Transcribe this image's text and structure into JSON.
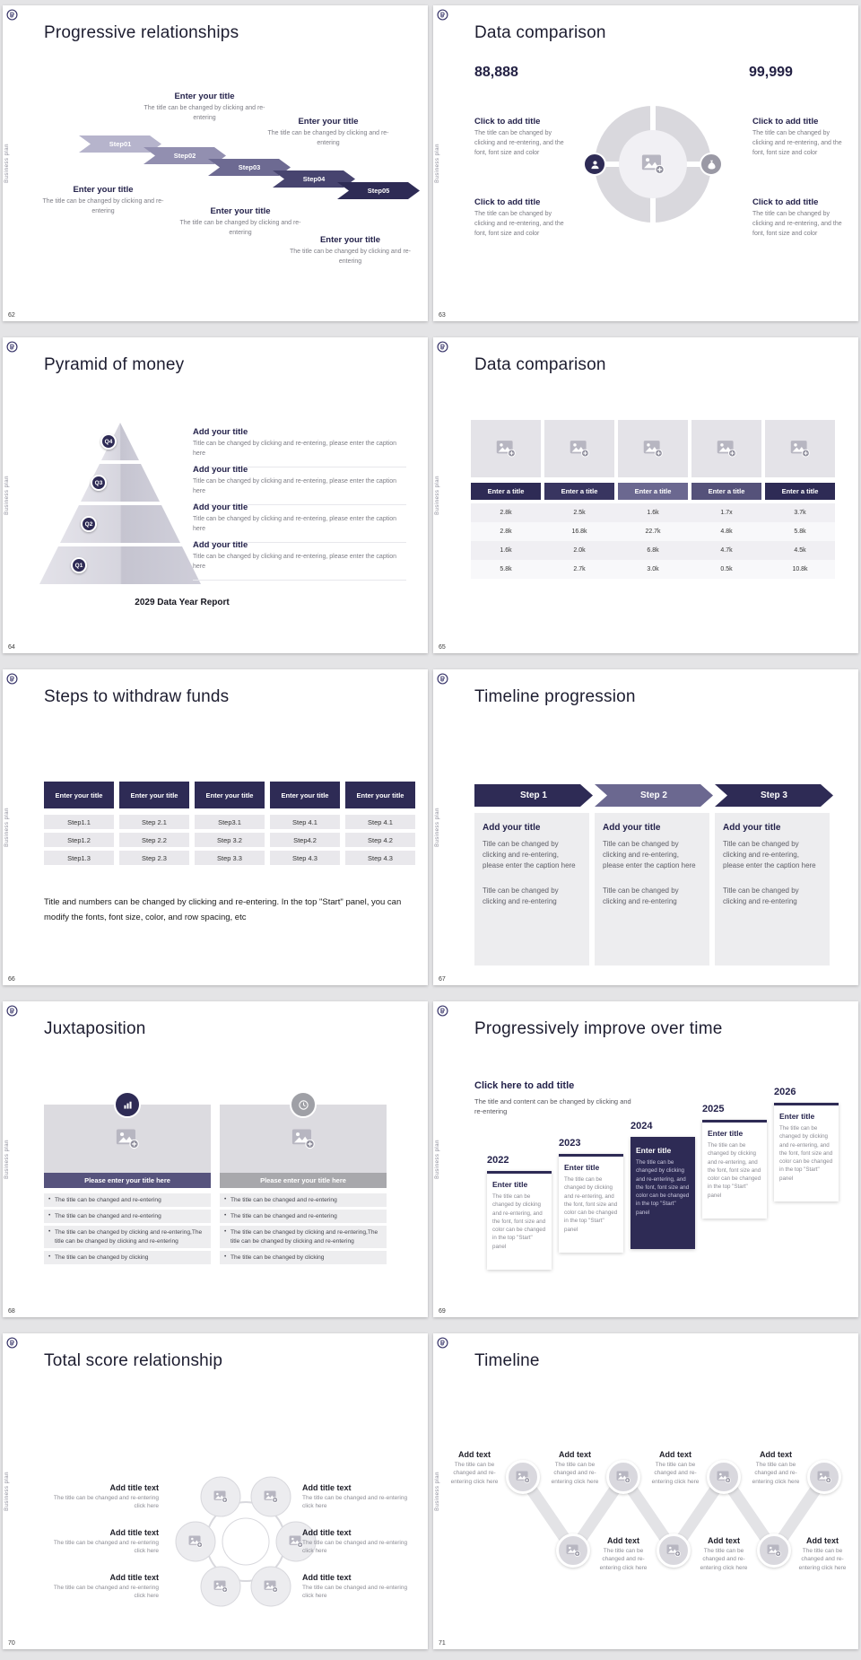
{
  "icons": {
    "logo": "brand-logo",
    "image": "image-placeholder",
    "person": "person",
    "money": "money-bag",
    "chart": "bar-chart",
    "clock": "clock"
  },
  "common": {
    "sidebar_text": "Business plan"
  },
  "slides": {
    "s62": {
      "number": "62",
      "title": "Progressive relationships",
      "steps": [
        "Step01",
        "Step02",
        "Step03",
        "Step04",
        "Step05"
      ],
      "blocks": [
        {
          "t": "Enter your title",
          "b": "The title can be changed by clicking and re-entering"
        },
        {
          "t": "Enter your title",
          "b": "The title can be changed by clicking and re-entering"
        },
        {
          "t": "Enter your title",
          "b": "The title can be changed by clicking and re-entering"
        },
        {
          "t": "Enter your title",
          "b": "The title can be changed by clicking and re-entering"
        },
        {
          "t": "Enter your title",
          "b": "The title can be changed by clicking and re-entering"
        }
      ]
    },
    "s63": {
      "number": "63",
      "title": "Data comparison",
      "left_value": "88,888",
      "right_value": "99,999",
      "blocks": [
        {
          "t": "Click to add title",
          "b": "The title can be changed by clicking and re-entering, and the font, font size and color"
        },
        {
          "t": "Click to add title",
          "b": "The title can be changed by clicking and re-entering, and the font, font size and color"
        },
        {
          "t": "Click to add title",
          "b": "The title can be changed by clicking and re-entering, and the font, font size and color"
        },
        {
          "t": "Click to add title",
          "b": "The title can be changed by clicking and re-entering, and the font, font size and color"
        }
      ]
    },
    "s64": {
      "number": "64",
      "title": "Pyramid of money",
      "levels": [
        "Q4",
        "Q3",
        "Q2",
        "Q1"
      ],
      "blocks": [
        {
          "t": "Add your title",
          "b": "Title can be changed by clicking and re-entering, please enter the caption here"
        },
        {
          "t": "Add your title",
          "b": "Title can be changed by clicking and re-entering, please enter the caption here"
        },
        {
          "t": "Add your title",
          "b": "Title can be changed by clicking and re-entering, please enter the caption here"
        },
        {
          "t": "Add your title",
          "b": "Title can be changed by clicking and re-entering, please enter the caption here"
        }
      ],
      "caption": "2029 Data Year Report"
    },
    "s65": {
      "number": "65",
      "title": "Data comparison",
      "headers": [
        "Enter a title",
        "Enter a title",
        "Enter a title",
        "Enter a title",
        "Enter a title"
      ],
      "rows": [
        [
          "2.8k",
          "2.5k",
          "1.6k",
          "1.7x",
          "3.7k"
        ],
        [
          "2.8k",
          "16.8k",
          "22.7k",
          "4.8k",
          "5.8k"
        ],
        [
          "1.6k",
          "2.0k",
          "6.8k",
          "4.7k",
          "4.5k"
        ],
        [
          "5.8k",
          "2.7k",
          "3.0k",
          "0.5k",
          "10.8k"
        ]
      ]
    },
    "s66": {
      "number": "66",
      "title": "Steps to withdraw funds",
      "headers": [
        "Enter your title",
        "Enter your title",
        "Enter your title",
        "Enter your title",
        "Enter your title"
      ],
      "cells": [
        [
          "Step1.1",
          "Step1.2",
          "Step1.3"
        ],
        [
          "Step 2.1",
          "Step 2.2",
          "Step 2.3"
        ],
        [
          "Step3.1",
          "Step 3.2",
          "Step 3.3"
        ],
        [
          "Step 4.1",
          "Step4.2",
          "Step 4.3"
        ],
        [
          "Step 4.1",
          "Step 4.2",
          "Step 4.3"
        ]
      ],
      "note": "Title and numbers can be changed by clicking and re-entering. In the top \"Start\" panel, you can modify the fonts, font size, color, and row spacing, etc"
    },
    "s67": {
      "number": "67",
      "title": "Timeline progression",
      "steps": [
        "Step 1",
        "Step 2",
        "Step 3"
      ],
      "panels": [
        {
          "t": "Add your title",
          "b1": "Title can be changed by clicking and re-entering, please enter the caption here",
          "b2": "Title can be changed by clicking and re-entering"
        },
        {
          "t": "Add your title",
          "b1": "Title can be changed by clicking and re-entering, please enter the caption here",
          "b2": "Title can be changed by clicking and re-entering"
        },
        {
          "t": "Add your title",
          "b1": "Title can be changed by clicking and re-entering, please enter the caption here",
          "b2": "Title can be changed by clicking and re-entering"
        }
      ]
    },
    "s68": {
      "number": "68",
      "title": "Juxtaposition",
      "cards": [
        {
          "bar": "Please enter your title here",
          "bullets": [
            "The title can be changed and re-entering",
            "The title can be changed and re-entering",
            "The title can be changed by clicking and re-entering,The title can be changed by clicking and re-entering",
            "The title can be changed by clicking"
          ]
        },
        {
          "bar": "Please enter your title here",
          "bullets": [
            "The title can be changed and re-entering",
            "The title can be changed and re-entering",
            "The title can be changed by clicking and re-entering,The title can be changed by clicking and re-entering",
            "The title can be changed by clicking"
          ]
        }
      ]
    },
    "s69": {
      "number": "69",
      "title": "Progressively improve over time",
      "heading": "Click here to add title",
      "subheading": "The title and content can be changed by clicking and re-entering",
      "years": [
        {
          "year": "2022",
          "t": "Enter title",
          "b": "The title can be changed by clicking and re-entering, and the font, font size and color can be changed in the top \"Start\" panel"
        },
        {
          "year": "2023",
          "t": "Enter title",
          "b": "The title can be changed by clicking and re-entering, and the font, font size and color can be changed in the top \"Start\" panel"
        },
        {
          "year": "2024",
          "t": "Enter title",
          "b": "The title can be changed by clicking and re-entering, and the font, font size and color can be changed in the top \"Start\" panel"
        },
        {
          "year": "2025",
          "t": "Enter title",
          "b": "The title can be changed by clicking and re-entering, and the font, font size and color can be changed in the top \"Start\" panel"
        },
        {
          "year": "2026",
          "t": "Enter title",
          "b": "The title can be changed by clicking and re-entering, and the font, font size and color can be changed in the top \"Start\" panel"
        }
      ]
    },
    "s70": {
      "number": "70",
      "title": "Total score relationship",
      "blocks": [
        {
          "t": "Add title text",
          "b": "The title can be changed and re-entering click here"
        },
        {
          "t": "Add title text",
          "b": "The title can be changed and re-entering click here"
        },
        {
          "t": "Add title text",
          "b": "The title can be changed and re-entering click here"
        },
        {
          "t": "Add title text",
          "b": "The title can be changed and re-entering click here"
        },
        {
          "t": "Add title text",
          "b": "The title can be changed and re-entering click here"
        },
        {
          "t": "Add title text",
          "b": "The title can be changed and re-entering click here"
        }
      ]
    },
    "s71": {
      "number": "71",
      "title": "Timeline",
      "blocks": [
        {
          "t": "Add text",
          "b": "The title can be changed and re-entering click here"
        },
        {
          "t": "Add text",
          "b": "The title can be changed and re-entering click here"
        },
        {
          "t": "Add text",
          "b": "The title can be changed and re-entering click here"
        },
        {
          "t": "Add text",
          "b": "The title can be changed and re-entering click here"
        },
        {
          "t": "Add text",
          "b": "The title can be changed and re-entering click here"
        },
        {
          "t": "Add text",
          "b": "The title can be changed and re-entering click here"
        },
        {
          "t": "Add text",
          "b": "The title can be changed and re-entering click here"
        }
      ]
    }
  }
}
